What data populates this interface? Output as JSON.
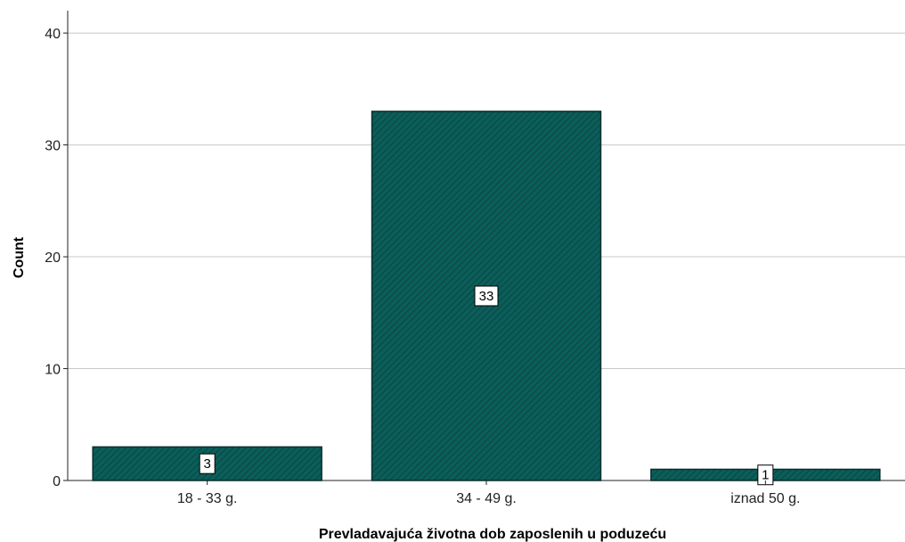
{
  "chart_data": {
    "type": "bar",
    "categories": [
      "18 - 33 g.",
      "34 - 49 g.",
      "iznad 50 g."
    ],
    "values": [
      3,
      33,
      1
    ],
    "data_labels": [
      "3",
      "33",
      "1"
    ],
    "title": "",
    "xlabel": "Prevladavajuća životna dob zaposlenih u poduzeću",
    "ylabel": "Count",
    "ylim": [
      0,
      42
    ],
    "yticks": [
      0,
      10,
      20,
      30,
      40
    ],
    "grid": true,
    "legend": "none",
    "colors": {
      "bar_fill": "#0b5e5a",
      "bar_hatch": "#0a4a47",
      "bar_stroke": "#062f2d",
      "grid": "#c8c8c8",
      "axis": "#222222"
    }
  }
}
